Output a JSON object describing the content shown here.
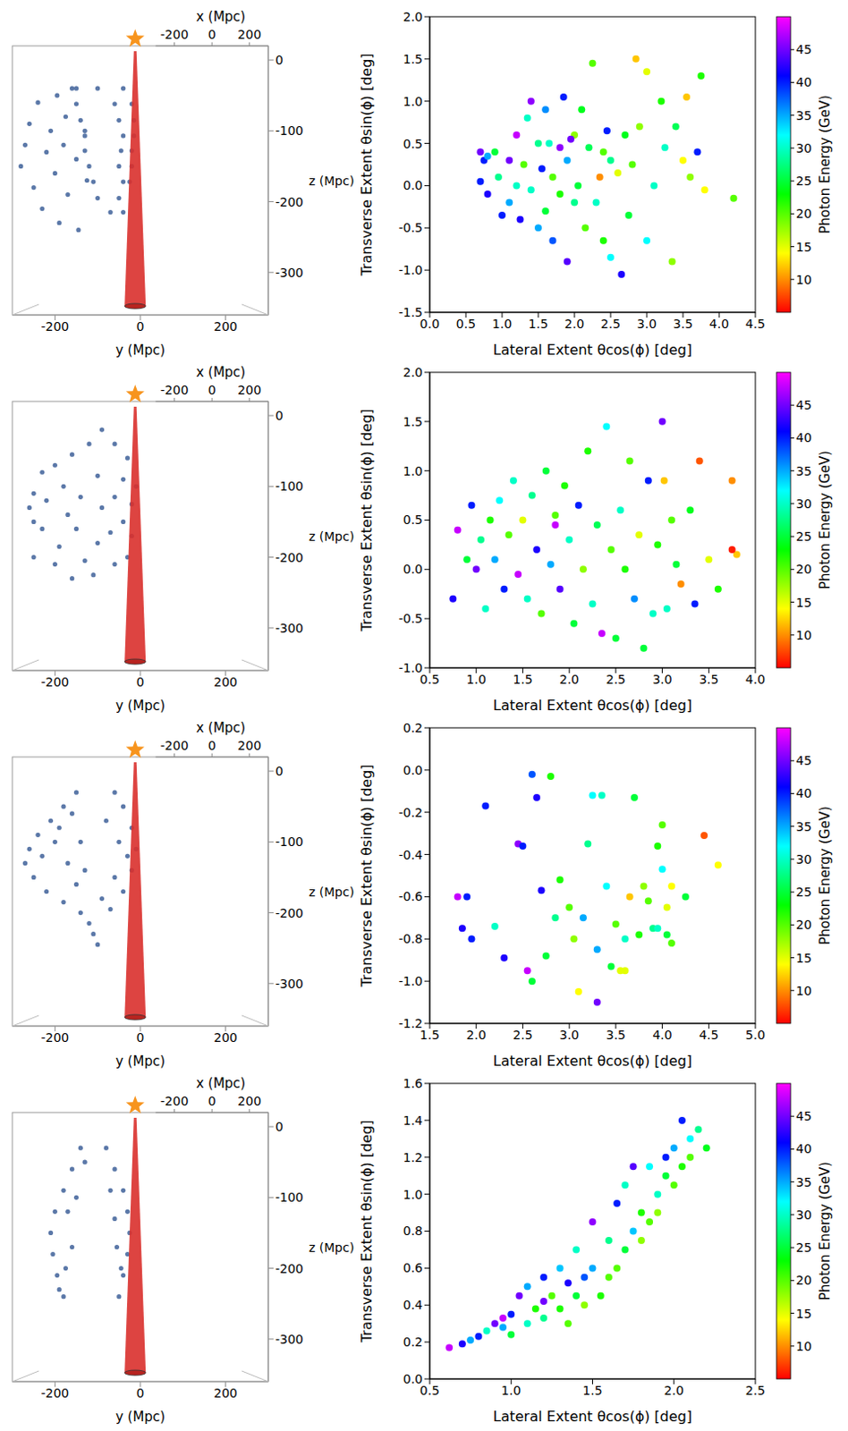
{
  "chart_data": [
    {
      "type": "scatter3d",
      "x_label": "y (Mpc)",
      "y_label": "z (Mpc)",
      "xlim": [
        -300,
        300
      ],
      "xticks": [
        -200,
        0,
        200
      ],
      "ylim": [
        -360,
        20
      ],
      "yticks": [
        0,
        -100,
        -200,
        -300
      ],
      "depth_axis": {
        "label": "x (Mpc)",
        "lim": [
          -300,
          300
        ],
        "ticks": [
          -200,
          0,
          200
        ]
      },
      "color": "#5b78a8",
      "x": [
        -270,
        -280,
        -260,
        -250,
        -240,
        -230,
        -220,
        -210,
        -200,
        -195,
        -190,
        -180,
        -175,
        -170,
        -160,
        -150,
        -145,
        -130,
        -125,
        -150,
        -100,
        -40,
        -150,
        -60,
        -20,
        -140,
        -50,
        -15,
        -130,
        -40,
        -15,
        -130,
        -45,
        -20,
        -120,
        -50,
        -20,
        -110,
        -40,
        -25,
        -100,
        -50,
        -70,
        -40
      ],
      "y": [
        -120,
        -150,
        -90,
        -180,
        -60,
        -210,
        -130,
        -100,
        -160,
        -50,
        -230,
        -120,
        -80,
        -190,
        -40,
        -140,
        -240,
        -100,
        -170,
        -40,
        -40,
        -40,
        -62,
        -62,
        -62,
        -85,
        -85,
        -85,
        -107,
        -107,
        -107,
        -128,
        -128,
        -128,
        -150,
        -150,
        -150,
        -172,
        -172,
        -172,
        -195,
        -195,
        -215,
        -215
      ]
    },
    {
      "type": "scatter",
      "x_label": "Lateral Extent θcos(ϕ) [deg]",
      "y_label": "Transverse Extent θsin(ϕ) [deg]",
      "xlim": [
        0,
        4.5
      ],
      "xticks": [
        {
          "value": 0,
          "label": "0.0"
        },
        0.5,
        {
          "value": 1,
          "label": "1.0"
        },
        1.5,
        {
          "value": 2,
          "label": "2.0"
        },
        2.5,
        {
          "value": 3,
          "label": "3.0"
        },
        3.5,
        {
          "value": 4,
          "label": "4.0"
        },
        4.5
      ],
      "ylim": [
        -1.5,
        2
      ],
      "yticks": [
        -1.5,
        {
          "value": -1,
          "label": "-1.0"
        },
        -0.5,
        {
          "value": 0,
          "label": "0.0"
        },
        0.5,
        {
          "value": 1,
          "label": "1.0"
        },
        1.5,
        {
          "value": 2,
          "label": "2.0"
        }
      ],
      "colorbar": {
        "label": "Photon Energy (GeV)",
        "range": [
          5,
          50
        ],
        "ticks": [
          10,
          15,
          20,
          25,
          30,
          35,
          40,
          45
        ]
      },
      "x": [
        0.7,
        0.75,
        0.8,
        0.7,
        0.9,
        0.8,
        0.95,
        1.0,
        1.1,
        1.1,
        1.2,
        1.2,
        1.25,
        1.3,
        1.35,
        1.4,
        1.4,
        1.5,
        1.5,
        1.55,
        1.6,
        1.6,
        1.65,
        1.7,
        1.7,
        1.8,
        1.8,
        1.85,
        1.9,
        1.9,
        2.0,
        2.0,
        2.05,
        2.1,
        2.15,
        2.2,
        2.25,
        2.3,
        2.35,
        2.4,
        2.45,
        2.5,
        2.5,
        2.6,
        2.65,
        2.7,
        2.75,
        2.8,
        2.85,
        2.9,
        3.0,
        3.0,
        3.1,
        3.2,
        3.25,
        3.35,
        3.4,
        3.5,
        3.55,
        3.6,
        3.7,
        3.75,
        3.8,
        4.2,
        2.4,
        1.95
      ],
      "y": [
        0.4,
        0.3,
        0.35,
        0.05,
        0.4,
        -0.1,
        0.1,
        -0.35,
        0.3,
        -0.2,
        0.0,
        0.6,
        -0.4,
        0.25,
        0.8,
        1.0,
        -0.05,
        0.5,
        -0.5,
        0.2,
        0.9,
        -0.3,
        0.5,
        0.1,
        -0.65,
        0.45,
        -0.1,
        1.05,
        0.3,
        -0.9,
        0.6,
        -0.2,
        0.0,
        0.9,
        -0.5,
        0.45,
        1.45,
        -0.2,
        0.1,
        -0.65,
        0.65,
        0.3,
        -0.85,
        0.15,
        -1.05,
        0.6,
        -0.35,
        0.25,
        1.5,
        0.7,
        1.35,
        -0.65,
        0.0,
        1.0,
        0.45,
        -0.9,
        0.7,
        0.3,
        1.05,
        0.1,
        0.4,
        1.3,
        -0.05,
        -0.15,
        0.4,
        0.55
      ],
      "energy": [
        45,
        40,
        35,
        40,
        25,
        42,
        28,
        40,
        45,
        35,
        30,
        48,
        42,
        20,
        30,
        46,
        30,
        28,
        35,
        40,
        36,
        25,
        30,
        20,
        38,
        46,
        22,
        40,
        35,
        44,
        18,
        28,
        25,
        24,
        20,
        26,
        20,
        30,
        10,
        22,
        40,
        28,
        32,
        15,
        42,
        24,
        25,
        20,
        12,
        18,
        15,
        32,
        30,
        22,
        30,
        18,
        26,
        14,
        12,
        18,
        40,
        22,
        14,
        20,
        20,
        45
      ]
    },
    {
      "type": "scatter3d",
      "x_label": "y (Mpc)",
      "y_label": "z (Mpc)",
      "xlim": [
        -300,
        300
      ],
      "xticks": [
        -200,
        0,
        200
      ],
      "ylim": [
        -360,
        20
      ],
      "yticks": [
        0,
        -100,
        -200,
        -300
      ],
      "depth_axis": {
        "label": "x (Mpc)",
        "lim": [
          -300,
          300
        ],
        "ticks": [
          -200,
          0,
          200
        ]
      },
      "color": "#5b78a8",
      "x": [
        -90,
        -60,
        -120,
        -30,
        -160,
        -200,
        -230,
        -40,
        -100,
        -180,
        -250,
        -220,
        -140,
        -60,
        -20,
        -90,
        -170,
        -250,
        -230,
        -150,
        -70,
        -20,
        -100,
        -190,
        -250,
        -200,
        -130,
        -60,
        -110,
        -160,
        -40,
        -10,
        -260,
        -30
      ],
      "y": [
        -20,
        -40,
        -40,
        -60,
        -55,
        -70,
        -80,
        -90,
        -85,
        -100,
        -110,
        -120,
        -115,
        -115,
        -125,
        -130,
        -140,
        -150,
        -160,
        -160,
        -165,
        -170,
        -180,
        -185,
        -200,
        -210,
        -205,
        -210,
        -225,
        -230,
        -150,
        -100,
        -130,
        -200
      ]
    },
    {
      "type": "scatter",
      "x_label": "Lateral Extent θcos(ϕ) [deg]",
      "y_label": "Transverse Extent θsin(ϕ) [deg]",
      "xlim": [
        0.5,
        4
      ],
      "xticks": [
        0.5,
        {
          "value": 1,
          "label": "1.0"
        },
        1.5,
        {
          "value": 2,
          "label": "2.0"
        },
        2.5,
        {
          "value": 3,
          "label": "3.0"
        },
        3.5,
        {
          "value": 4,
          "label": "4.0"
        }
      ],
      "ylim": [
        -1,
        2
      ],
      "yticks": [
        {
          "value": -1,
          "label": "-1.0"
        },
        -0.5,
        {
          "value": 0,
          "label": "0.0"
        },
        0.5,
        {
          "value": 1,
          "label": "1.0"
        },
        1.5,
        {
          "value": 2,
          "label": "2.0"
        }
      ],
      "colorbar": {
        "label": "Photon Energy (GeV)",
        "range": [
          5,
          50
        ],
        "ticks": [
          10,
          15,
          20,
          25,
          30,
          35,
          40,
          45
        ]
      },
      "x": [
        0.75,
        0.8,
        0.9,
        0.95,
        1.0,
        1.05,
        1.1,
        1.15,
        1.2,
        1.25,
        1.3,
        1.35,
        1.4,
        1.45,
        1.5,
        1.55,
        1.6,
        1.65,
        1.7,
        1.75,
        1.8,
        1.85,
        1.9,
        1.95,
        2.0,
        2.05,
        2.1,
        2.15,
        2.2,
        2.25,
        2.3,
        2.35,
        2.4,
        2.45,
        2.5,
        2.55,
        2.6,
        2.65,
        2.7,
        2.75,
        2.8,
        2.85,
        2.9,
        2.95,
        3.0,
        3.02,
        3.05,
        3.1,
        3.15,
        3.2,
        3.3,
        3.35,
        3.4,
        3.5,
        3.6,
        3.75,
        3.8,
        3.75,
        1.85
      ],
      "y": [
        -0.3,
        0.4,
        0.1,
        0.65,
        0.0,
        0.3,
        -0.4,
        0.5,
        0.1,
        0.7,
        -0.2,
        0.35,
        0.9,
        -0.05,
        0.5,
        -0.3,
        0.75,
        0.2,
        -0.45,
        1.0,
        0.05,
        0.55,
        -0.2,
        0.85,
        0.3,
        -0.55,
        0.65,
        0.0,
        1.2,
        -0.35,
        0.45,
        -0.65,
        1.45,
        0.2,
        -0.7,
        0.6,
        0.0,
        1.1,
        -0.3,
        0.35,
        -0.8,
        0.9,
        -0.45,
        0.25,
        1.5,
        0.9,
        -0.4,
        0.5,
        0.05,
        -0.15,
        0.6,
        -0.35,
        1.1,
        0.1,
        -0.2,
        0.9,
        0.15,
        0.2,
        0.45
      ],
      "energy": [
        42,
        48,
        25,
        40,
        45,
        28,
        30,
        22,
        35,
        32,
        40,
        20,
        30,
        48,
        15,
        30,
        28,
        42,
        20,
        25,
        35,
        20,
        44,
        22,
        30,
        25,
        40,
        18,
        22,
        30,
        26,
        48,
        32,
        20,
        25,
        30,
        22,
        20,
        36,
        15,
        25,
        40,
        30,
        22,
        45,
        12,
        30,
        20,
        25,
        10,
        24,
        40,
        8,
        15,
        22,
        10,
        12,
        6,
        48
      ]
    },
    {
      "type": "scatter3d",
      "x_label": "y (Mpc)",
      "y_label": "z (Mpc)",
      "xlim": [
        -300,
        300
      ],
      "xticks": [
        -200,
        0,
        200
      ],
      "ylim": [
        -360,
        20
      ],
      "yticks": [
        0,
        -100,
        -200,
        -300
      ],
      "depth_axis": {
        "label": "x (Mpc)",
        "lim": [
          -300,
          300
        ],
        "ticks": [
          -200,
          0,
          200
        ]
      },
      "color": "#5b78a8",
      "x": [
        -150,
        -180,
        -210,
        -240,
        -260,
        -270,
        -250,
        -220,
        -180,
        -140,
        -120,
        -110,
        -100,
        -200,
        -170,
        -150,
        -230,
        -190,
        -160,
        -140,
        -130,
        -60,
        -40,
        -20,
        -10,
        -20,
        -40,
        -70,
        -50,
        -60,
        -80,
        -30,
        -90
      ],
      "y": [
        -30,
        -50,
        -70,
        -90,
        -110,
        -130,
        -150,
        -170,
        -185,
        -200,
        -215,
        -230,
        -245,
        -100,
        -130,
        -160,
        -120,
        -80,
        -60,
        -100,
        -140,
        -30,
        -50,
        -80,
        -110,
        -140,
        -170,
        -195,
        -100,
        -150,
        -70,
        -120,
        -180
      ]
    },
    {
      "type": "scatter",
      "x_label": "Lateral Extent θcos(ϕ) [deg]",
      "y_label": "Transverse Extent θsin(ϕ) [deg]",
      "xlim": [
        1.5,
        5
      ],
      "xticks": [
        1.5,
        {
          "value": 2,
          "label": "2.0"
        },
        2.5,
        {
          "value": 3,
          "label": "3.0"
        },
        3.5,
        {
          "value": 4,
          "label": "4.0"
        },
        4.5,
        {
          "value": 5,
          "label": "5.0"
        }
      ],
      "ylim": [
        -1.2,
        0.2
      ],
      "yticks": [
        -1.2,
        {
          "value": -1,
          "label": "-1.0"
        },
        -0.8,
        -0.6,
        -0.4,
        -0.2,
        {
          "value": 0,
          "label": "0.0"
        },
        0.2
      ],
      "colorbar": {
        "label": "Photon Energy (GeV)",
        "range": [
          5,
          50
        ],
        "ticks": [
          10,
          15,
          20,
          25,
          30,
          35,
          40,
          45
        ]
      },
      "x": [
        1.8,
        1.85,
        1.9,
        1.95,
        2.1,
        2.2,
        2.3,
        2.45,
        2.5,
        2.55,
        2.6,
        2.6,
        2.65,
        2.7,
        2.75,
        2.8,
        2.9,
        3.0,
        3.05,
        3.1,
        3.15,
        3.2,
        3.25,
        3.3,
        3.3,
        3.35,
        3.4,
        3.45,
        3.5,
        3.55,
        3.6,
        3.65,
        3.7,
        3.75,
        3.8,
        3.85,
        3.9,
        3.95,
        4.0,
        4.0,
        4.05,
        4.05,
        4.1,
        4.1,
        4.25,
        4.45,
        4.6,
        3.6,
        2.85,
        3.95
      ],
      "y": [
        -0.6,
        -0.75,
        -0.6,
        -0.8,
        -0.17,
        -0.74,
        -0.89,
        -0.35,
        -0.36,
        -0.95,
        -0.02,
        -1.0,
        -0.13,
        -0.57,
        -0.88,
        -0.03,
        -0.52,
        -0.65,
        -0.8,
        -1.05,
        -0.7,
        -0.35,
        -0.12,
        -1.1,
        -0.85,
        -0.12,
        -0.55,
        -0.93,
        -0.73,
        -0.95,
        -0.8,
        -0.6,
        -0.13,
        -0.78,
        -0.55,
        -0.62,
        -0.75,
        -0.36,
        -0.26,
        -0.47,
        -0.78,
        -0.65,
        -0.82,
        -0.55,
        -0.6,
        -0.31,
        -0.45,
        -0.95,
        -0.7,
        -0.75
      ],
      "energy": [
        48,
        42,
        40,
        40,
        40,
        30,
        42,
        46,
        40,
        48,
        38,
        25,
        42,
        42,
        25,
        22,
        22,
        20,
        18,
        14,
        35,
        28,
        32,
        45,
        35,
        30,
        32,
        25,
        20,
        15,
        30,
        12,
        25,
        22,
        18,
        20,
        28,
        22,
        20,
        32,
        25,
        15,
        20,
        14,
        25,
        8,
        14,
        15,
        28,
        30
      ]
    },
    {
      "type": "scatter3d",
      "x_label": "y (Mpc)",
      "y_label": "z (Mpc)",
      "xlim": [
        -300,
        300
      ],
      "xticks": [
        -200,
        0,
        200
      ],
      "ylim": [
        -360,
        20
      ],
      "yticks": [
        0,
        -100,
        -200,
        -300
      ],
      "depth_axis": {
        "label": "x (Mpc)",
        "lim": [
          -300,
          300
        ],
        "ticks": [
          -200,
          0,
          200
        ]
      },
      "color": "#5b78a8",
      "x": [
        -140,
        -160,
        -180,
        -200,
        -210,
        -205,
        -195,
        -180,
        -170,
        -160,
        -150,
        -175,
        -130,
        -80,
        -60,
        -40,
        -30,
        -25,
        -30,
        -40,
        -50,
        -60,
        -55,
        -70,
        -190,
        -45
      ],
      "y": [
        -30,
        -60,
        -90,
        -120,
        -150,
        -180,
        -210,
        -240,
        -120,
        -170,
        -100,
        -200,
        -50,
        -30,
        -60,
        -90,
        -120,
        -150,
        -180,
        -210,
        -240,
        -130,
        -170,
        -90,
        -230,
        -200
      ]
    },
    {
      "type": "scatter",
      "x_label": "Lateral Extent θcos(ϕ) [deg]",
      "y_label": "Transverse Extent θsin(ϕ) [deg]",
      "xlim": [
        0.5,
        2.5
      ],
      "xticks": [
        0.5,
        {
          "value": 1,
          "label": "1.0"
        },
        1.5,
        {
          "value": 2,
          "label": "2.0"
        },
        2.5
      ],
      "ylim": [
        0,
        1.6
      ],
      "yticks": [
        {
          "value": 0,
          "label": "0.0"
        },
        0.2,
        0.4,
        0.6,
        0.8,
        {
          "value": 1,
          "label": "1.0"
        },
        1.2,
        1.4,
        1.6
      ],
      "colorbar": {
        "label": "Photon Energy (GeV)",
        "range": [
          5,
          50
        ],
        "ticks": [
          10,
          15,
          20,
          25,
          30,
          35,
          40,
          45
        ]
      },
      "x": [
        0.62,
        0.7,
        0.75,
        0.8,
        0.85,
        0.9,
        0.95,
        1.0,
        1.0,
        1.05,
        1.1,
        1.1,
        1.15,
        1.2,
        1.2,
        1.25,
        1.3,
        1.3,
        1.35,
        1.35,
        1.4,
        1.4,
        1.45,
        1.5,
        1.5,
        1.55,
        1.6,
        1.6,
        1.65,
        1.65,
        1.7,
        1.7,
        1.75,
        1.75,
        1.8,
        1.8,
        1.85,
        1.85,
        1.9,
        1.9,
        1.95,
        1.95,
        2.0,
        2.0,
        2.05,
        2.05,
        2.1,
        2.1,
        2.15,
        2.2,
        1.2,
        1.45,
        0.95
      ],
      "y": [
        0.17,
        0.19,
        0.21,
        0.23,
        0.26,
        0.3,
        0.28,
        0.35,
        0.24,
        0.45,
        0.3,
        0.5,
        0.38,
        0.55,
        0.33,
        0.45,
        0.6,
        0.38,
        0.52,
        0.3,
        0.7,
        0.45,
        0.4,
        0.6,
        0.85,
        0.45,
        0.75,
        0.55,
        0.95,
        0.6,
        0.7,
        1.05,
        0.8,
        1.15,
        0.75,
        0.9,
        1.15,
        0.85,
        1.0,
        0.9,
        1.1,
        1.2,
        1.05,
        1.25,
        1.15,
        1.4,
        1.3,
        1.2,
        1.35,
        1.25,
        0.42,
        0.55,
        0.33
      ],
      "energy": [
        48,
        42,
        35,
        40,
        30,
        45,
        35,
        40,
        25,
        45,
        30,
        35,
        22,
        40,
        28,
        20,
        34,
        22,
        42,
        20,
        30,
        25,
        18,
        35,
        46,
        22,
        28,
        20,
        40,
        20,
        25,
        30,
        34,
        44,
        18,
        22,
        32,
        20,
        30,
        18,
        25,
        40,
        20,
        35,
        22,
        40,
        32,
        20,
        28,
        24,
        45,
        38,
        48
      ]
    }
  ]
}
